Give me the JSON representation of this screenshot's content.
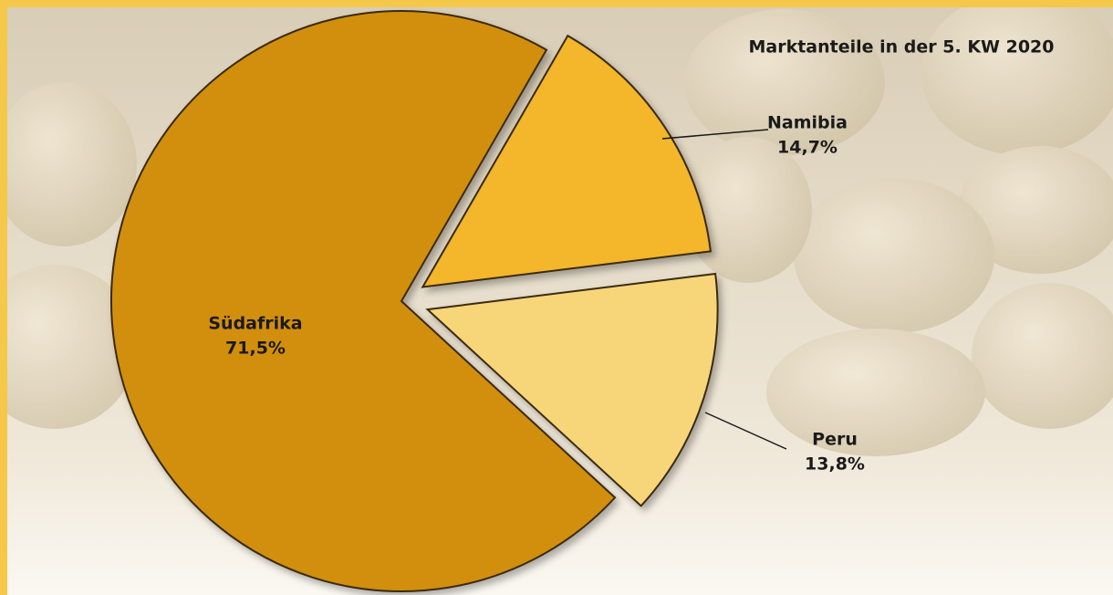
{
  "chart_data": {
    "type": "pie",
    "title": "Marktanteile in der 5. KW 2020",
    "categories": [
      "Namibia",
      "Peru",
      "Südafrika"
    ],
    "values": [
      14.7,
      13.8,
      71.5
    ],
    "value_labels": [
      "14,7%",
      "13,8%",
      "71,5%"
    ],
    "colors": [
      "#f4b62a",
      "#f7d67a",
      "#d28f0c"
    ]
  }
}
